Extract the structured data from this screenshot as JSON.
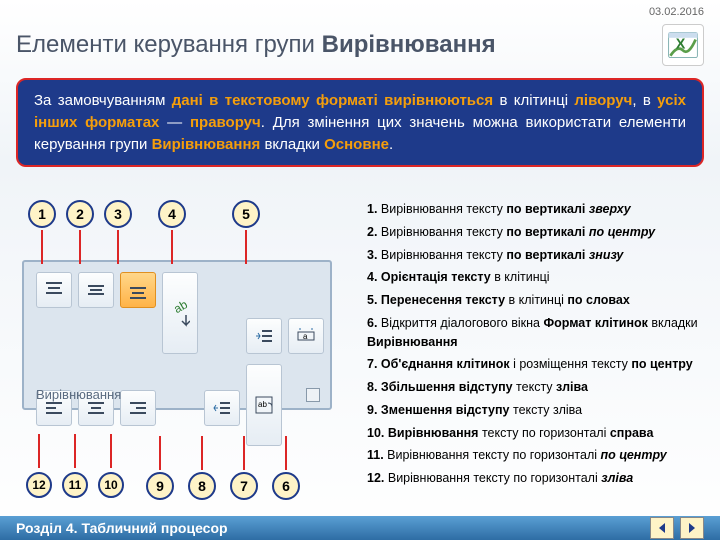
{
  "date": "03.02.2016",
  "title_prefix": "Елементи керування групи ",
  "title_bold": "Вирівнювання",
  "intro": {
    "p1a": "За замовчуванням ",
    "p1b": "дані в текстовому форматі вирівнюються",
    "p1c": " в клітинці ",
    "p1d": "ліворуч",
    "p1e": ", в ",
    "p1f": "усіх інших форматах",
    "p1g": " — ",
    "p1h": "праворуч",
    "p1i": ". Для змінення цих значень можна використати елементи керування групи ",
    "p1j": "Вирівнювання",
    "p1k": " вкладки ",
    "p1l": "Основне",
    "p1m": "."
  },
  "callouts_top": [
    "1",
    "2",
    "3",
    "4",
    "5"
  ],
  "callouts_bottom": [
    "12",
    "11",
    "10",
    "9",
    "8",
    "7",
    "6"
  ],
  "ribbon_label": "Вирівнювання",
  "list": [
    {
      "n": "1.",
      "t": " Вирівнювання тексту ",
      "b": "по вертикалі ",
      "i": "зверху"
    },
    {
      "n": "2.",
      "t": " Вирівнювання тексту ",
      "b": "по вертикалі ",
      "i": "по центру"
    },
    {
      "n": "3.",
      "t": " Вирівнювання тексту ",
      "b": "по вертикалі ",
      "i": "знизу"
    },
    {
      "n": "4.",
      "b2": "Орієнтація тексту",
      "t2": " в клітинці"
    },
    {
      "n": "5.",
      "b2": "Перенесення тексту",
      "t2": " в клітинці ",
      "b3": "по словах"
    },
    {
      "n": "6.",
      "t": " Відкриття діалогового вікна ",
      "b": "Формат клітинок",
      "t2": " вкладки ",
      "b3": "Вирівнювання"
    },
    {
      "n": "7.",
      "b2": "Об'єднання клітинок",
      "t2": " і розміщення тексту ",
      "b3": "по центру"
    },
    {
      "n": "8.",
      "b2": "Збільшення відступу",
      "t2": " тексту ",
      "b3": "зліва"
    },
    {
      "n": "9.",
      "b2": "Зменшення відступу",
      "t2": " тексту зліва"
    },
    {
      "n": "10.",
      "b2": "Вирівнювання",
      "t2": " тексту по горизонталі ",
      "b3": "справа"
    },
    {
      "n": "11.",
      "t": " Вирівнювання тексту по горизонталі ",
      "i": "по центру"
    },
    {
      "n": "12.",
      "t": " Вирівнювання тексту по горизонталі ",
      "i": "зліва"
    }
  ],
  "footer": "Розділ 4. Табличний процесор",
  "colors": {
    "accent_blue": "#1e3a8a",
    "accent_orange": "#f59e0b",
    "border_red": "#dc2626",
    "callout_bg": "#fef3c7"
  }
}
